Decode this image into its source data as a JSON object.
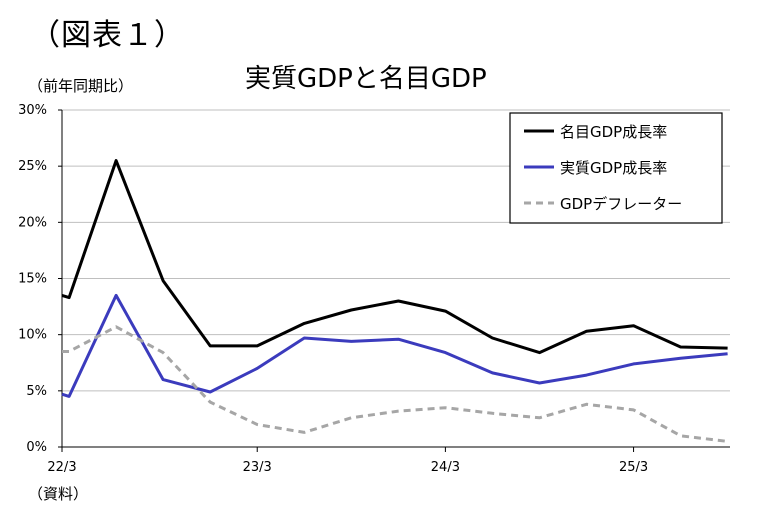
{
  "figure_label": "（図表１）",
  "unit_label": "（前年同期比）",
  "source_label": "（資料）",
  "chart_data": {
    "type": "line",
    "title": "実質GDPと名目GDP",
    "ylabel": "（前年同期比）",
    "xlabel": "",
    "ylim": [
      0,
      30
    ],
    "yticks": [
      "0%",
      "5%",
      "10%",
      "15%",
      "20%",
      "25%",
      "30%"
    ],
    "ytick_values": [
      0,
      5,
      10,
      15,
      20,
      25,
      30
    ],
    "xtick_labels": [
      "22/3",
      "23/3",
      "24/3",
      "25/3"
    ],
    "xtick_positions": [
      0,
      4.15,
      8.15,
      12.15
    ],
    "xlim": [
      0,
      14.2
    ],
    "grid": "horizontal",
    "legend_position": "top-right",
    "series": [
      {
        "name": "名目GDP成長率",
        "color": "#000000",
        "dash": "solid",
        "x": [
          0,
          0.15,
          1.15,
          2.15,
          3.15,
          4.15,
          5.15,
          6.15,
          7.15,
          8.15,
          9.15,
          10.15,
          11.15,
          12.15,
          13.15,
          14.15
        ],
        "values": [
          13.5,
          13.3,
          25.5,
          14.8,
          9.0,
          9.0,
          11.0,
          12.2,
          13.0,
          12.1,
          9.7,
          8.4,
          10.3,
          10.8,
          8.9,
          8.8
        ]
      },
      {
        "name": "実質GDP成長率",
        "color": "#3b3bbd",
        "dash": "solid",
        "x": [
          0,
          0.15,
          1.15,
          2.15,
          3.15,
          4.15,
          5.15,
          6.15,
          7.15,
          8.15,
          9.15,
          10.15,
          11.15,
          12.15,
          13.15,
          14.15
        ],
        "values": [
          4.7,
          4.5,
          13.5,
          6.0,
          4.9,
          7.0,
          9.7,
          9.4,
          9.6,
          8.4,
          6.6,
          5.7,
          6.4,
          7.4,
          7.9,
          8.3
        ]
      },
      {
        "name": "GDPデフレーター",
        "color": "#a6a6a6",
        "dash": "dashed",
        "x": [
          0,
          0.15,
          1.15,
          2.15,
          3.15,
          4.15,
          5.15,
          6.15,
          7.15,
          8.15,
          9.15,
          10.15,
          11.15,
          12.15,
          13.15,
          14.15
        ],
        "values": [
          8.5,
          8.5,
          10.7,
          8.4,
          4.0,
          2.0,
          1.3,
          2.6,
          3.2,
          3.5,
          3.0,
          2.6,
          3.8,
          3.3,
          1.0,
          0.5
        ]
      }
    ]
  }
}
